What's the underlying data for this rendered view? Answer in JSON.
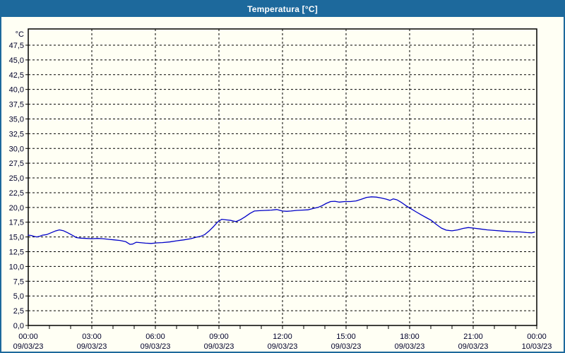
{
  "window": {
    "title": "Temperatura [°C]"
  },
  "colors": {
    "titlebar": "#1d699c",
    "window_border": "#1d699c",
    "background": "#fffff4",
    "grid": "#000000",
    "frame": "#000000",
    "label_text": "#00002a",
    "line": "#0000c8"
  },
  "chart_data": {
    "type": "line",
    "title": "Temperatura [°C]",
    "y_unit_label": "°C",
    "ylim": [
      0,
      50.25
    ],
    "ytick_step": 2.5,
    "ytick_labels": [
      "0,0",
      "2,5",
      "5,0",
      "7,5",
      "10,0",
      "12,5",
      "15,0",
      "17,5",
      "20,0",
      "22,5",
      "25,0",
      "27,5",
      "30,0",
      "32,5",
      "35,0",
      "37,5",
      "40,0",
      "42,5",
      "45,0",
      "47,5"
    ],
    "xlim_hours": [
      0,
      24
    ],
    "grid": "dashed",
    "legend_position": "none",
    "xtick_minor_every_hours": 1,
    "xtick_major": [
      {
        "hour": 0,
        "time": "00:00",
        "date": "09/03/23"
      },
      {
        "hour": 3,
        "time": "03:00",
        "date": "09/03/23"
      },
      {
        "hour": 6,
        "time": "06:00",
        "date": "09/03/23"
      },
      {
        "hour": 9,
        "time": "09:00",
        "date": "09/03/23"
      },
      {
        "hour": 12,
        "time": "12:00",
        "date": "09/03/23"
      },
      {
        "hour": 15,
        "time": "15:00",
        "date": "09/03/23"
      },
      {
        "hour": 18,
        "time": "18:00",
        "date": "09/03/23"
      },
      {
        "hour": 21,
        "time": "21:00",
        "date": "09/03/23"
      },
      {
        "hour": 24,
        "time": "00:00",
        "date": "10/03/23"
      }
    ],
    "series": [
      {
        "name": "Temperatura",
        "color": "#0000c8",
        "points": [
          [
            0.0,
            15.3
          ],
          [
            0.13,
            15.25
          ],
          [
            0.27,
            15.1
          ],
          [
            0.4,
            15.0
          ],
          [
            0.53,
            15.1
          ],
          [
            0.67,
            15.3
          ],
          [
            0.87,
            15.4
          ],
          [
            1.07,
            15.7
          ],
          [
            1.27,
            16.0
          ],
          [
            1.47,
            16.2
          ],
          [
            1.67,
            16.05
          ],
          [
            1.87,
            15.7
          ],
          [
            2.07,
            15.3
          ],
          [
            2.27,
            14.9
          ],
          [
            2.47,
            14.8
          ],
          [
            2.73,
            14.75
          ],
          [
            3.0,
            14.7
          ],
          [
            3.27,
            14.75
          ],
          [
            3.53,
            14.7
          ],
          [
            3.8,
            14.6
          ],
          [
            4.07,
            14.5
          ],
          [
            4.33,
            14.4
          ],
          [
            4.6,
            14.2
          ],
          [
            4.8,
            13.75
          ],
          [
            4.93,
            13.8
          ],
          [
            5.1,
            14.1
          ],
          [
            5.27,
            14.05
          ],
          [
            5.53,
            13.95
          ],
          [
            5.8,
            13.9
          ],
          [
            6.07,
            14.0
          ],
          [
            6.33,
            14.05
          ],
          [
            6.67,
            14.15
          ],
          [
            7.0,
            14.35
          ],
          [
            7.33,
            14.5
          ],
          [
            7.67,
            14.7
          ],
          [
            7.93,
            14.95
          ],
          [
            8.13,
            15.1
          ],
          [
            8.33,
            15.4
          ],
          [
            8.53,
            16.0
          ],
          [
            8.73,
            16.7
          ],
          [
            8.93,
            17.5
          ],
          [
            9.13,
            18.0
          ],
          [
            9.33,
            17.9
          ],
          [
            9.57,
            17.8
          ],
          [
            9.8,
            17.6
          ],
          [
            10.0,
            17.9
          ],
          [
            10.23,
            18.4
          ],
          [
            10.47,
            19.0
          ],
          [
            10.67,
            19.4
          ],
          [
            10.93,
            19.45
          ],
          [
            11.2,
            19.5
          ],
          [
            11.47,
            19.55
          ],
          [
            11.73,
            19.65
          ],
          [
            12.0,
            19.4
          ],
          [
            12.2,
            19.35
          ],
          [
            12.4,
            19.4
          ],
          [
            12.67,
            19.5
          ],
          [
            12.93,
            19.55
          ],
          [
            13.2,
            19.6
          ],
          [
            13.47,
            19.85
          ],
          [
            13.67,
            20.0
          ],
          [
            13.87,
            20.3
          ],
          [
            14.07,
            20.7
          ],
          [
            14.27,
            21.0
          ],
          [
            14.47,
            21.05
          ],
          [
            14.67,
            20.9
          ],
          [
            14.93,
            21.0
          ],
          [
            15.2,
            21.0
          ],
          [
            15.47,
            21.1
          ],
          [
            15.73,
            21.4
          ],
          [
            15.97,
            21.7
          ],
          [
            16.2,
            21.8
          ],
          [
            16.43,
            21.75
          ],
          [
            16.67,
            21.6
          ],
          [
            16.9,
            21.4
          ],
          [
            17.07,
            21.2
          ],
          [
            17.23,
            21.45
          ],
          [
            17.4,
            21.3
          ],
          [
            17.63,
            20.8
          ],
          [
            17.87,
            20.2
          ],
          [
            18.1,
            19.7
          ],
          [
            18.33,
            19.2
          ],
          [
            18.57,
            18.7
          ],
          [
            18.8,
            18.25
          ],
          [
            19.03,
            17.8
          ],
          [
            19.27,
            17.1
          ],
          [
            19.5,
            16.5
          ],
          [
            19.73,
            16.15
          ],
          [
            20.0,
            16.05
          ],
          [
            20.27,
            16.2
          ],
          [
            20.53,
            16.45
          ],
          [
            20.77,
            16.6
          ],
          [
            21.03,
            16.5
          ],
          [
            21.33,
            16.35
          ],
          [
            21.67,
            16.2
          ],
          [
            22.0,
            16.1
          ],
          [
            22.4,
            16.0
          ],
          [
            22.8,
            15.9
          ],
          [
            23.2,
            15.85
          ],
          [
            23.53,
            15.75
          ],
          [
            23.77,
            15.7
          ],
          [
            23.9,
            15.8
          ]
        ]
      }
    ]
  }
}
